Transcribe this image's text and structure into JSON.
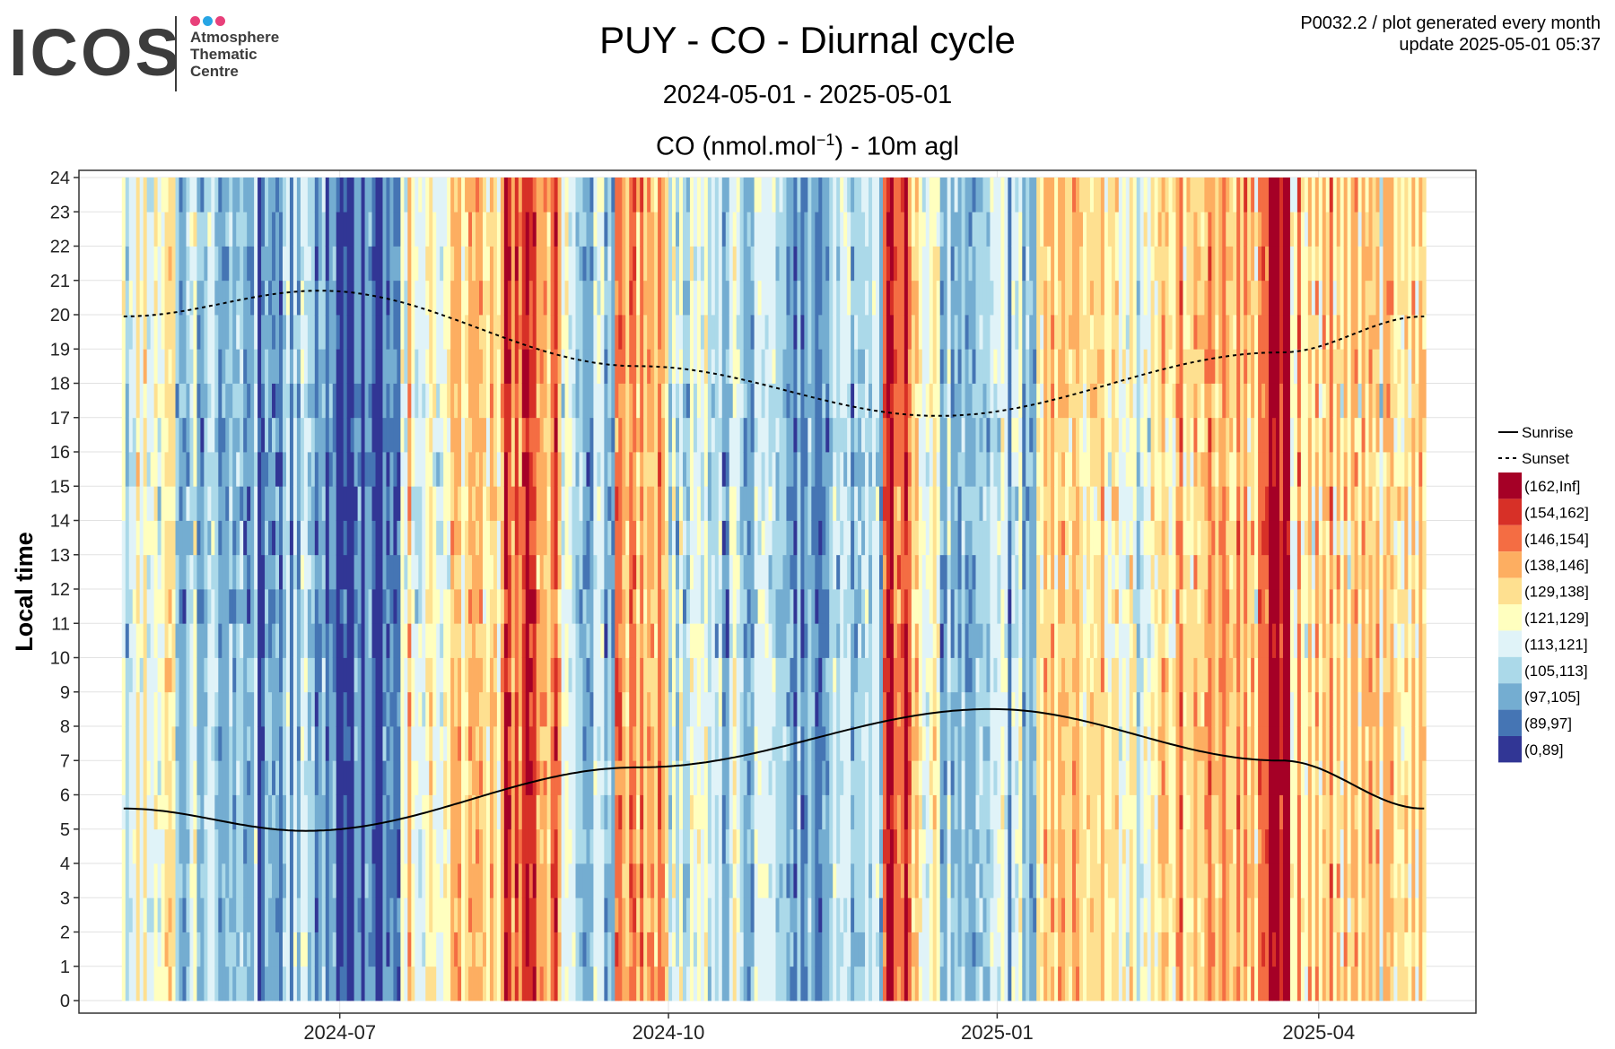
{
  "header": {
    "logo_text": "ICOS",
    "logo_lines": [
      "Atmosphere",
      "Thematic",
      "Centre"
    ],
    "logo_dot_colors": [
      "#e8407a",
      "#27a5e4",
      "#e8407a"
    ],
    "title": "PUY - CO - Diurnal cycle",
    "subtitle": "2024-05-01 - 2025-05-01",
    "unit_pre": "CO (nmol.mol",
    "unit_sup": "−1",
    "unit_post": ") - 10m agl",
    "info_line1": "P0032.2 / plot generated every month",
    "info_line2": "update  2025-05-01 05:37"
  },
  "chart_data": {
    "type": "heatmap",
    "ylabel": "Local time",
    "xlabel": "",
    "x_range": [
      "2024-05-01",
      "2025-04-30"
    ],
    "ylim": [
      0,
      24
    ],
    "y_ticks": [
      0,
      1,
      2,
      3,
      4,
      5,
      6,
      7,
      8,
      9,
      10,
      11,
      12,
      13,
      14,
      15,
      16,
      17,
      18,
      19,
      20,
      21,
      22,
      23,
      24
    ],
    "x_ticks": [
      {
        "date": "2024-07-01",
        "label": "2024-07"
      },
      {
        "date": "2024-10-01",
        "label": "2024-10"
      },
      {
        "date": "2025-01-01",
        "label": "2025-01"
      },
      {
        "date": "2025-04-01",
        "label": "2025-04"
      }
    ],
    "grid": true,
    "legend_position": "right",
    "classes": [
      {
        "label": "(162,Inf]",
        "color": "#a50026"
      },
      {
        "label": "(154,162]",
        "color": "#d73027"
      },
      {
        "label": "(146,154]",
        "color": "#f46d43"
      },
      {
        "label": "(138,146]",
        "color": "#fdae61"
      },
      {
        "label": "(129,138]",
        "color": "#fee090"
      },
      {
        "label": "(121,129]",
        "color": "#ffffbf"
      },
      {
        "label": "(113,121]",
        "color": "#e0f3f8"
      },
      {
        "label": "(105,113]",
        "color": "#abd9e9"
      },
      {
        "label": "(97,105]",
        "color": "#74add1"
      },
      {
        "label": "(89,97]",
        "color": "#4575b4"
      },
      {
        "label": "(0,89]",
        "color": "#313695"
      }
    ],
    "period_dominant_class": [
      {
        "start": "2024-05-01",
        "end": "2024-05-16",
        "class": 5
      },
      {
        "start": "2024-05-16",
        "end": "2024-06-01",
        "class": 7
      },
      {
        "start": "2024-06-01",
        "end": "2024-06-16",
        "class": 8
      },
      {
        "start": "2024-06-16",
        "end": "2024-06-24",
        "class": 7
      },
      {
        "start": "2024-06-24",
        "end": "2024-07-18",
        "class": 9
      },
      {
        "start": "2024-07-18",
        "end": "2024-08-01",
        "class": 5
      },
      {
        "start": "2024-08-01",
        "end": "2024-08-16",
        "class": 4
      },
      {
        "start": "2024-08-16",
        "end": "2024-09-01",
        "class": 2
      },
      {
        "start": "2024-09-01",
        "end": "2024-09-16",
        "class": 7
      },
      {
        "start": "2024-09-16",
        "end": "2024-10-01",
        "class": 3
      },
      {
        "start": "2024-10-01",
        "end": "2024-10-16",
        "class": 6
      },
      {
        "start": "2024-10-16",
        "end": "2024-11-01",
        "class": 7
      },
      {
        "start": "2024-11-01",
        "end": "2024-11-16",
        "class": 8
      },
      {
        "start": "2024-11-16",
        "end": "2024-11-30",
        "class": 7
      },
      {
        "start": "2024-11-30",
        "end": "2024-12-08",
        "class": 1
      },
      {
        "start": "2024-12-08",
        "end": "2024-12-16",
        "class": 5
      },
      {
        "start": "2024-12-16",
        "end": "2025-01-12",
        "class": 7
      },
      {
        "start": "2025-01-12",
        "end": "2025-02-01",
        "class": 4
      },
      {
        "start": "2025-02-01",
        "end": "2025-02-16",
        "class": 5
      },
      {
        "start": "2025-02-16",
        "end": "2025-03-01",
        "class": 4
      },
      {
        "start": "2025-03-01",
        "end": "2025-03-16",
        "class": 3
      },
      {
        "start": "2025-03-16",
        "end": "2025-03-24",
        "class": 0
      },
      {
        "start": "2025-03-24",
        "end": "2025-04-30",
        "class": 4
      }
    ],
    "series": [
      {
        "name": "Sunrise",
        "style": "solid",
        "x": [
          "2024-05-01",
          "2024-06-21",
          "2024-09-22",
          "2024-12-30",
          "2025-03-21",
          "2025-04-30"
        ],
        "y": [
          5.6,
          4.95,
          6.8,
          8.5,
          7.0,
          5.6
        ]
      },
      {
        "name": "Sunset",
        "style": "dashed",
        "x": [
          "2024-05-01",
          "2024-06-25",
          "2024-09-22",
          "2024-12-15",
          "2025-03-21",
          "2025-04-30"
        ],
        "y": [
          19.95,
          20.7,
          18.5,
          17.05,
          18.9,
          19.95
        ]
      }
    ]
  }
}
